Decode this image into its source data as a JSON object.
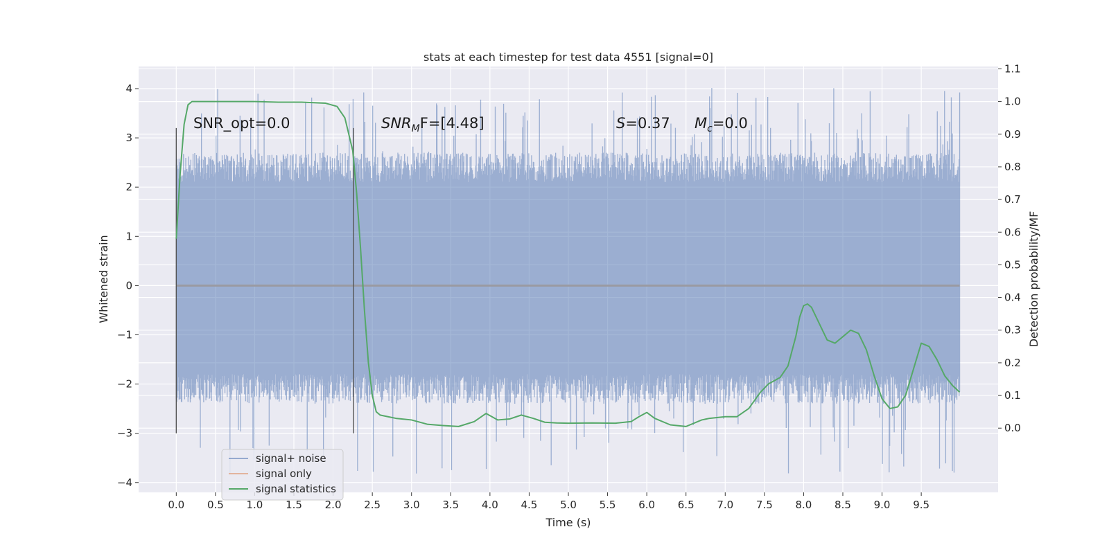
{
  "chart_data": {
    "type": "line",
    "title": "stats at each timestep for test data 4551 [signal=0]",
    "xlabel": "Time (s)",
    "ylabel": "Whitened strain",
    "ylabel_right": "Detection probability/MF",
    "xlim": [
      -0.48,
      10.48
    ],
    "ylim": [
      -4.2,
      4.45
    ],
    "ylim_right": [
      -0.1967,
      1.1073
    ],
    "x_ticks": [
      0.0,
      0.5,
      1.0,
      1.5,
      2.0,
      2.5,
      3.0,
      3.5,
      4.0,
      4.5,
      5.0,
      5.5,
      6.0,
      6.5,
      7.0,
      7.5,
      8.0,
      8.5,
      9.0,
      9.5
    ],
    "x_tick_labels": [
      "0.0",
      "0.5",
      "1.0",
      "1.5",
      "2.0",
      "2.5",
      "3.0",
      "3.5",
      "4.0",
      "4.5",
      "5.0",
      "5.5",
      "6.0",
      "6.5",
      "7.0",
      "7.5",
      "8.0",
      "8.5",
      "9.0",
      "9.5"
    ],
    "y_ticks": [
      4,
      3,
      2,
      1,
      0,
      -1,
      -2,
      -3,
      -4
    ],
    "y_tick_labels": [
      "4",
      "3",
      "2",
      "1",
      "0",
      "−1",
      "−2",
      "−3",
      "−4"
    ],
    "y_right_ticks": [
      1.1,
      1.0,
      0.9,
      0.8,
      0.7,
      0.6,
      0.5,
      0.4,
      0.3,
      0.2,
      0.1,
      0.0
    ],
    "y_right_tick_labels": [
      "1.1",
      "1.0",
      "0.9",
      "0.8",
      "0.7",
      "0.6",
      "0.5",
      "0.4",
      "0.3",
      "0.2",
      "0.1",
      "0.0"
    ],
    "grid": true,
    "legend_position": "lower-left",
    "series": [
      {
        "name": "signal+ noise",
        "color": "#4c72b0",
        "axis": "left",
        "x_range": [
          0.0,
          9.99
        ],
        "upper_envelope_approx": 2.3,
        "lower_envelope_approx": -2.0,
        "max": 4.05,
        "min": -3.85
      },
      {
        "name": "signal only",
        "color": "#dd8452",
        "axis": "left",
        "x": [
          0.0,
          9.99
        ],
        "y": [
          0.0,
          0.0
        ]
      },
      {
        "name": "signal statistics",
        "color": "#55a868",
        "axis": "right",
        "x": [
          0.0,
          0.05,
          0.1,
          0.15,
          0.2,
          0.3,
          0.5,
          0.8,
          1.0,
          1.3,
          1.6,
          1.9,
          2.05,
          2.15,
          2.25,
          2.3,
          2.35,
          2.4,
          2.45,
          2.5,
          2.55,
          2.6,
          2.7,
          2.8,
          3.0,
          3.2,
          3.4,
          3.6,
          3.8,
          3.95,
          4.1,
          4.25,
          4.4,
          4.55,
          4.7,
          4.85,
          5.0,
          5.3,
          5.6,
          5.8,
          5.9,
          6.0,
          6.1,
          6.3,
          6.5,
          6.7,
          6.8,
          7.0,
          7.15,
          7.3,
          7.45,
          7.55,
          7.7,
          7.8,
          7.9,
          7.95,
          8.0,
          8.05,
          8.1,
          8.2,
          8.3,
          8.4,
          8.5,
          8.6,
          8.7,
          8.8,
          8.9,
          9.0,
          9.1,
          9.2,
          9.3,
          9.4,
          9.5,
          9.6,
          9.7,
          9.8,
          9.9,
          9.99
        ],
        "y": [
          0.58,
          0.78,
          0.93,
          0.99,
          1.0,
          1.0,
          1.0,
          1.0,
          1.0,
          0.998,
          0.998,
          0.995,
          0.985,
          0.95,
          0.85,
          0.72,
          0.55,
          0.36,
          0.2,
          0.1,
          0.05,
          0.04,
          0.035,
          0.03,
          0.025,
          0.012,
          0.008,
          0.005,
          0.02,
          0.045,
          0.025,
          0.028,
          0.04,
          0.03,
          0.018,
          0.016,
          0.015,
          0.016,
          0.015,
          0.02,
          0.035,
          0.048,
          0.03,
          0.01,
          0.005,
          0.025,
          0.03,
          0.035,
          0.035,
          0.06,
          0.11,
          0.135,
          0.155,
          0.19,
          0.28,
          0.34,
          0.375,
          0.38,
          0.37,
          0.32,
          0.27,
          0.26,
          0.28,
          0.3,
          0.29,
          0.24,
          0.16,
          0.09,
          0.06,
          0.065,
          0.1,
          0.18,
          0.26,
          0.25,
          0.21,
          0.16,
          0.13,
          0.11
        ]
      }
    ],
    "markers": [
      {
        "x": 0.0,
        "y_from": -3.0,
        "y_to": 3.2
      },
      {
        "x": 2.26,
        "y_from": -3.0,
        "y_to": 3.2
      }
    ],
    "annotations": [
      {
        "id": "snr_opt",
        "text": "SNR_opt=0.0"
      },
      {
        "id": "snr_mf",
        "prefix": "SNR",
        "sub": "M",
        "suffix": "F=[4.48]"
      },
      {
        "id": "s",
        "prefix": "S",
        "suffix": "=0.37"
      },
      {
        "id": "mc",
        "prefix": "M",
        "sub": "c",
        "suffix": "=0.0"
      }
    ],
    "colors": {
      "plot_bg": "#eaeaf2",
      "grid": "#ffffff",
      "noise": "#4c72b0",
      "signal": "#dd8452",
      "stats": "#55a868",
      "marker": "#555555"
    }
  }
}
